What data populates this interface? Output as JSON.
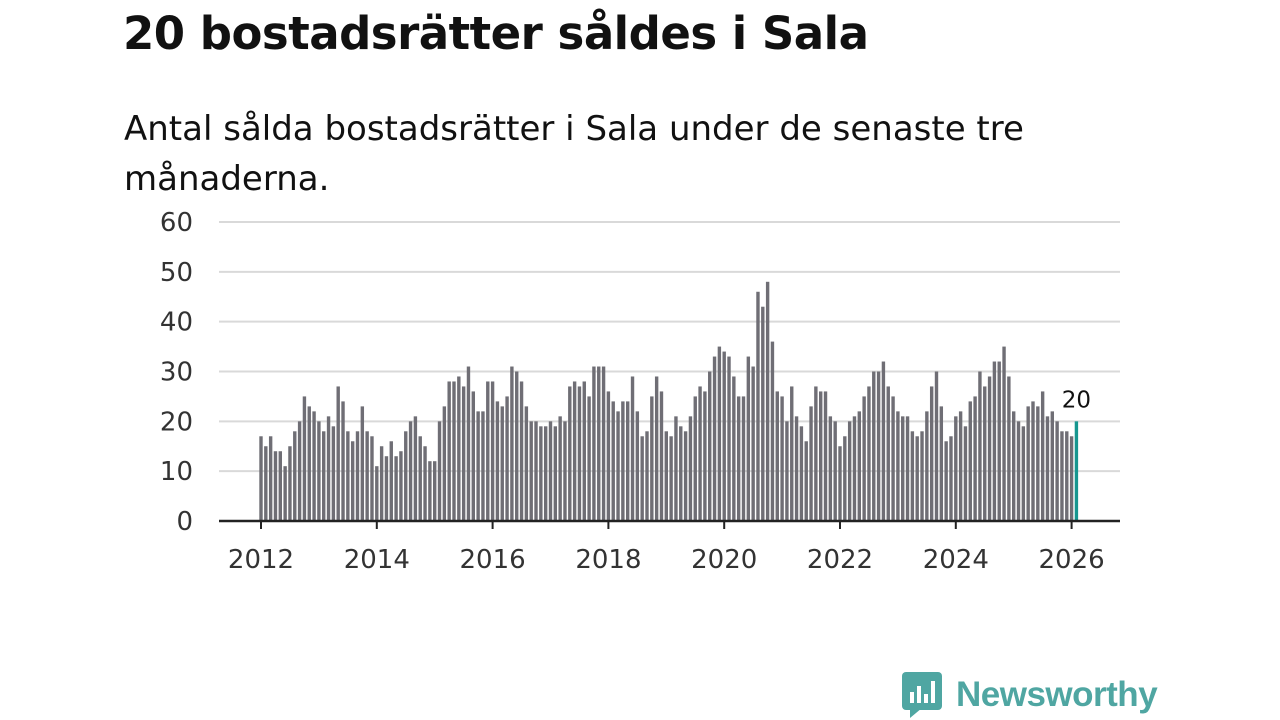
{
  "title": "20 bostadsrätter såldes i Sala",
  "subtitle": "Antal sålda bostadsrätter i Sala under de senaste tre månaderna.",
  "colors": {
    "bar": "#6f6e75",
    "highlight": "#16968f",
    "grid": "#d9d9d9",
    "axis": "#222222",
    "brand": "#4fa6a2"
  },
  "brand": {
    "name": "Newsworthy",
    "icon": "bar-chart-logo-icon"
  },
  "chart_data": {
    "type": "bar",
    "title": "20 bostadsrätter såldes i Sala",
    "xlabel": "",
    "ylabel": "",
    "ylim": [
      0,
      60
    ],
    "yticks": [
      0,
      10,
      20,
      30,
      40,
      50,
      60
    ],
    "xlim": [
      2012,
      2026.2
    ],
    "xticks": [
      2012,
      2014,
      2016,
      2018,
      2020,
      2022,
      2024,
      2026
    ],
    "start": {
      "year": 2012,
      "month": 1
    },
    "period": "monthly (rolling three-month total)",
    "highlight_last": true,
    "last_label": "20",
    "values": [
      17,
      15,
      17,
      14,
      14,
      11,
      15,
      18,
      20,
      25,
      23,
      22,
      20,
      18,
      21,
      19,
      27,
      24,
      18,
      16,
      18,
      23,
      18,
      17,
      11,
      15,
      13,
      16,
      13,
      14,
      18,
      20,
      21,
      17,
      15,
      12,
      12,
      20,
      23,
      28,
      28,
      29,
      27,
      31,
      26,
      22,
      22,
      28,
      28,
      24,
      23,
      25,
      31,
      30,
      28,
      23,
      20,
      20,
      19,
      19,
      20,
      19,
      21,
      20,
      27,
      28,
      27,
      28,
      25,
      31,
      31,
      31,
      26,
      24,
      22,
      24,
      24,
      29,
      22,
      17,
      18,
      25,
      29,
      26,
      18,
      17,
      21,
      19,
      18,
      21,
      25,
      27,
      26,
      30,
      33,
      35,
      34,
      33,
      29,
      25,
      25,
      33,
      31,
      46,
      43,
      48,
      36,
      26,
      25,
      20,
      27,
      21,
      19,
      16,
      23,
      27,
      26,
      26,
      21,
      20,
      15,
      17,
      20,
      21,
      22,
      25,
      27,
      30,
      30,
      32,
      27,
      25,
      22,
      21,
      21,
      18,
      17,
      18,
      22,
      27,
      30,
      23,
      16,
      17,
      21,
      22,
      19,
      24,
      25,
      30,
      27,
      29,
      32,
      32,
      35,
      29,
      22,
      20,
      19,
      23,
      24,
      23,
      26,
      21,
      22,
      20,
      18,
      18,
      17,
      20
    ]
  }
}
